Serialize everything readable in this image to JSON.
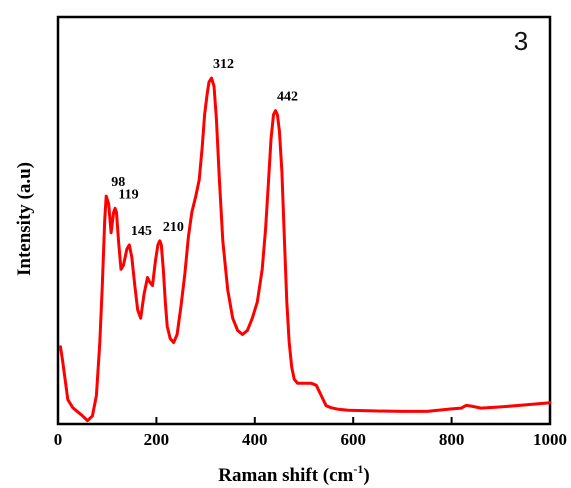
{
  "chart_data": {
    "type": "line",
    "panel_label": "3",
    "xlabel": "Raman shift (cm",
    "xlabel_sup": "-1",
    "xlabel_tail": ")",
    "ylabel": "Intensity (a.u)",
    "xlim": [
      0,
      1000
    ],
    "ylim": [
      0,
      1
    ],
    "x_ticks": [
      0,
      200,
      400,
      600,
      800,
      1000
    ],
    "x_tick_labels": [
      "0",
      "200",
      "400",
      "600",
      "800",
      "1000"
    ],
    "grid": false,
    "line_color": "#ff0000",
    "series": [
      {
        "x": [
          5,
          10,
          20,
          30,
          40,
          50,
          60,
          70,
          78,
          85,
          90,
          95,
          98,
          103,
          108,
          113,
          116,
          119,
          123,
          128,
          133,
          140,
          145,
          150,
          156,
          162,
          168,
          175,
          182,
          186,
          192,
          198,
          203,
          207,
          210,
          214,
          218,
          222,
          228,
          235,
          242,
          250,
          258,
          265,
          272,
          280,
          287,
          293,
          298,
          303,
          307,
          312,
          317,
          322,
          328,
          335,
          345,
          355,
          365,
          375,
          385,
          395,
          405,
          415,
          422,
          428,
          433,
          438,
          442,
          446,
          450,
          455,
          460,
          465,
          470,
          475,
          480,
          487,
          495,
          505,
          515,
          525,
          535,
          545,
          555,
          570,
          590,
          620,
          650,
          700,
          750,
          800,
          820,
          830,
          840,
          860,
          900,
          950,
          1000
        ],
        "y": [
          0.19,
          0.15,
          0.06,
          0.04,
          0.03,
          0.02,
          0.008,
          0.02,
          0.07,
          0.2,
          0.34,
          0.5,
          0.56,
          0.54,
          0.47,
          0.52,
          0.53,
          0.52,
          0.45,
          0.38,
          0.39,
          0.43,
          0.44,
          0.41,
          0.34,
          0.28,
          0.26,
          0.32,
          0.36,
          0.35,
          0.34,
          0.4,
          0.44,
          0.45,
          0.44,
          0.38,
          0.3,
          0.24,
          0.21,
          0.2,
          0.22,
          0.29,
          0.37,
          0.46,
          0.52,
          0.56,
          0.6,
          0.68,
          0.76,
          0.81,
          0.84,
          0.85,
          0.83,
          0.75,
          0.6,
          0.45,
          0.33,
          0.26,
          0.23,
          0.22,
          0.23,
          0.26,
          0.3,
          0.38,
          0.48,
          0.6,
          0.7,
          0.76,
          0.77,
          0.76,
          0.72,
          0.62,
          0.46,
          0.3,
          0.2,
          0.14,
          0.11,
          0.1,
          0.1,
          0.1,
          0.1,
          0.095,
          0.07,
          0.045,
          0.04,
          0.036,
          0.034,
          0.033,
          0.032,
          0.031,
          0.031,
          0.037,
          0.039,
          0.046,
          0.044,
          0.039,
          0.042,
          0.047,
          0.052
        ]
      }
    ],
    "annotations": [
      {
        "text": "98",
        "x": 98,
        "y": 0.56
      },
      {
        "text": "119",
        "x": 119,
        "y": 0.53
      },
      {
        "text": "145",
        "x": 145,
        "y": 0.44
      },
      {
        "text": "210",
        "x": 210,
        "y": 0.45
      },
      {
        "text": "312",
        "x": 312,
        "y": 0.85
      },
      {
        "text": "442",
        "x": 442,
        "y": 0.77
      }
    ]
  }
}
